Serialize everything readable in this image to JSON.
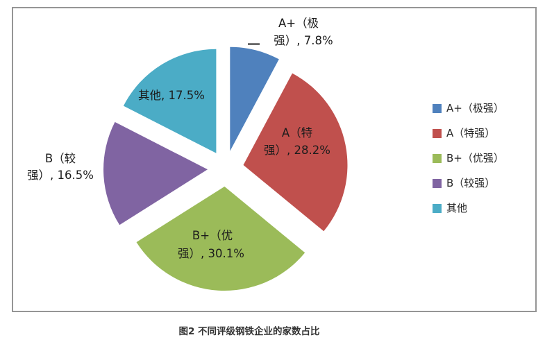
{
  "figure": {
    "caption": "图2 不同评级钢铁企业的家数占比"
  },
  "chart_data": {
    "type": "pie",
    "title": "图2 不同评级钢铁企业的家数占比",
    "categories": [
      "A+（极强）",
      "A（特强）",
      "B+（优强）",
      "B（较强）",
      "其他"
    ],
    "values": [
      7.8,
      28.2,
      30.1,
      16.5,
      17.5
    ],
    "unit": "%",
    "colors": [
      "#4F81BD",
      "#C0504D",
      "#9BBB59",
      "#8064A2",
      "#4BACC6"
    ],
    "start_angle_deg": 0,
    "direction": "clockwise",
    "exploded": true,
    "legend_position": "right",
    "frame_border_color": "#959595",
    "label_text_color": "#1c1c1c",
    "legend_labels": [
      "A+（极强）",
      "A（特强）",
      "B+（优强）",
      "B（较强）",
      "其他"
    ],
    "data_labels": [
      {
        "lines": [
          "A+（极",
          "强）, 7.8%"
        ]
      },
      {
        "lines": [
          "A（特",
          "强）, 28.2%"
        ]
      },
      {
        "lines": [
          "B+（优",
          "强）, 30.1%"
        ]
      },
      {
        "lines": [
          "B（较",
          "强）, 16.5%"
        ]
      },
      {
        "lines": [
          "其他, 17.5%"
        ]
      }
    ]
  }
}
